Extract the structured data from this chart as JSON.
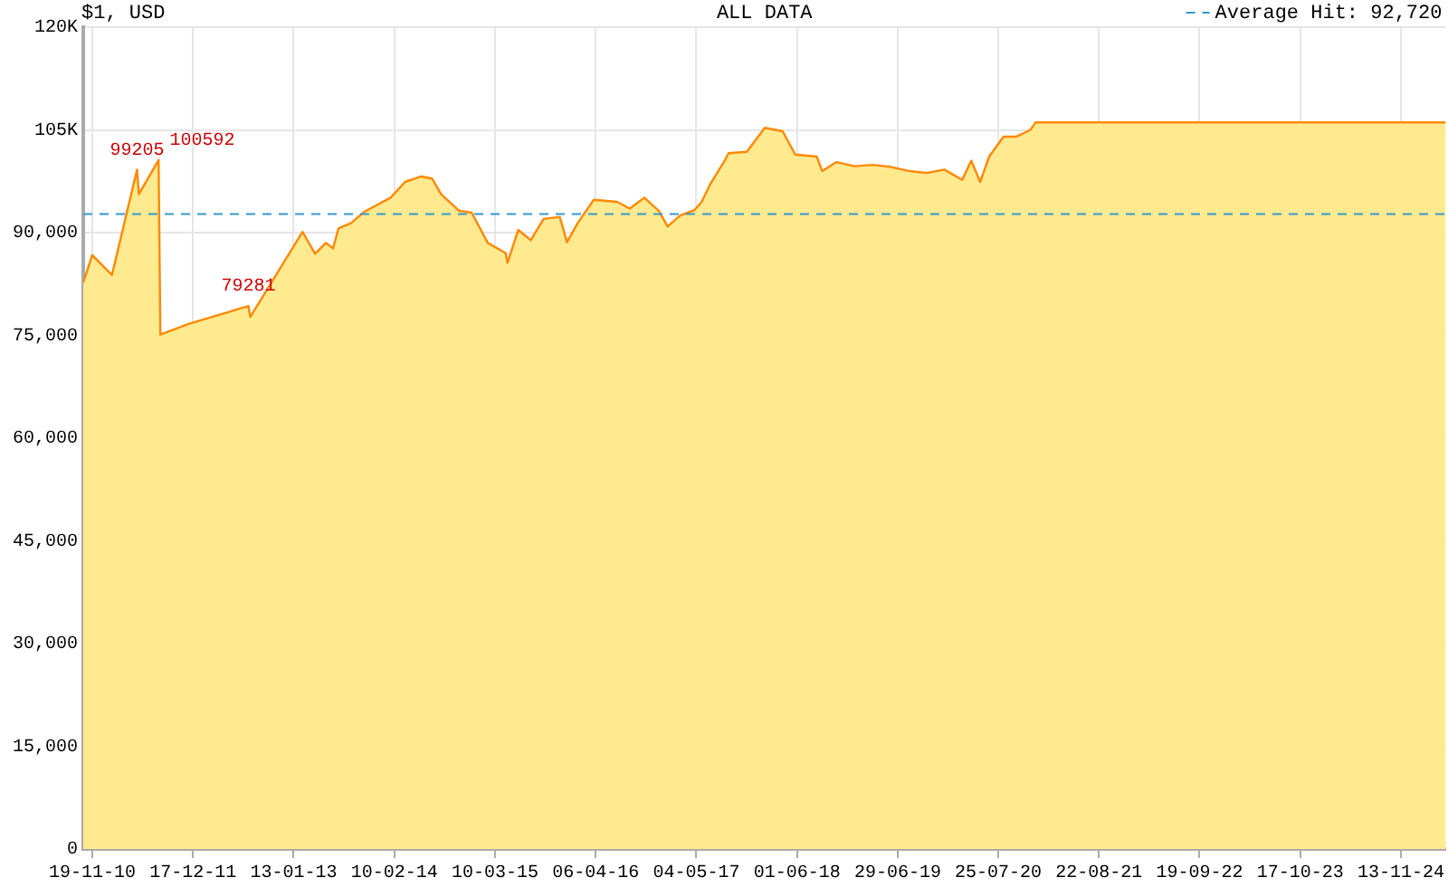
{
  "chart_data": {
    "type": "area",
    "title": "$1, USD",
    "subtitle": "ALL DATA",
    "x": [
      "2010-10-15",
      "2010-11-19",
      "2011-02-04",
      "2011-05-13",
      "2011-05-20",
      "2011-08-05",
      "2011-08-12",
      "2011-12-03",
      "2012-07-21",
      "2012-07-28",
      "2013-02-17",
      "2013-04-07",
      "2013-05-19",
      "2013-06-16",
      "2013-07-07",
      "2013-08-26",
      "2013-10-14",
      "2014-01-27",
      "2014-03-24",
      "2014-05-26",
      "2014-07-07",
      "2014-08-12",
      "2014-10-21",
      "2014-12-09",
      "2015-02-10",
      "2015-04-21",
      "2015-04-28",
      "2015-06-09",
      "2015-07-28",
      "2015-09-16",
      "2015-11-18",
      "2015-12-16",
      "2016-01-27",
      "2016-03-30",
      "2016-06-29",
      "2016-08-17",
      "2016-10-13",
      "2016-12-08",
      "2017-01-12",
      "2017-03-02",
      "2017-04-27",
      "2017-05-25",
      "2017-06-29",
      "2017-08-24",
      "2017-09-07",
      "2017-11-17",
      "2018-01-26",
      "2018-04-06",
      "2018-05-25",
      "2018-08-17",
      "2018-09-07",
      "2018-11-02",
      "2019-01-12",
      "2019-03-23",
      "2019-06-01",
      "2019-08-10",
      "2019-10-19",
      "2019-12-28",
      "2020-03-07",
      "2020-04-11",
      "2020-05-16",
      "2020-06-20",
      "2020-08-15",
      "2020-10-03",
      "2020-11-28",
      "2020-12-19",
      "2025-05-07"
    ],
    "series": [
      {
        "color": "#ff8800",
        "values": [
          82700,
          86700,
          83800,
          99205,
          95600,
          100592,
          75100,
          76700,
          79281,
          77700,
          90100,
          86900,
          88500,
          87700,
          90600,
          91400,
          93000,
          95100,
          97400,
          98200,
          97900,
          95600,
          93200,
          92900,
          88500,
          87000,
          85600,
          90400,
          88900,
          92000,
          92300,
          88600,
          91400,
          94800,
          94500,
          93500,
          95100,
          93200,
          90900,
          92500,
          93300,
          94500,
          97200,
          100600,
          101600,
          101800,
          105300,
          104800,
          101400,
          101100,
          99000,
          100300,
          99700,
          99900,
          99600,
          99000,
          98700,
          99200,
          97700,
          100500,
          97400,
          101100,
          104000,
          104000,
          105000,
          106100,
          106100
        ]
      }
    ],
    "xlim": [
      "2010-10-15",
      "2025-05-07"
    ],
    "xticks": [
      {
        "value": "2010-11-19",
        "label": "19-11-10"
      },
      {
        "value": "2011-12-17",
        "label": "17-12-11"
      },
      {
        "value": "2013-01-13",
        "label": "13-01-13"
      },
      {
        "value": "2014-02-10",
        "label": "10-02-14"
      },
      {
        "value": "2015-03-10",
        "label": "10-03-15"
      },
      {
        "value": "2016-04-06",
        "label": "06-04-16"
      },
      {
        "value": "2017-05-04",
        "label": "04-05-17"
      },
      {
        "value": "2018-06-01",
        "label": "01-06-18"
      },
      {
        "value": "2019-06-29",
        "label": "29-06-19"
      },
      {
        "value": "2020-07-25",
        "label": "25-07-20"
      },
      {
        "value": "2021-08-22",
        "label": "22-08-21"
      },
      {
        "value": "2022-09-19",
        "label": "19-09-22"
      },
      {
        "value": "2023-10-17",
        "label": "17-10-23"
      },
      {
        "value": "2024-11-13",
        "label": "13-11-24"
      }
    ],
    "ylim": [
      0,
      120000
    ],
    "yticks": [
      0,
      {
        "value": 15000,
        "label": "15,000"
      },
      {
        "value": 30000,
        "label": "30,000"
      },
      {
        "value": 45000,
        "label": "45,000"
      },
      {
        "value": 60000,
        "label": "60,000"
      },
      {
        "value": 75000,
        "label": "75,000"
      },
      {
        "value": 90000,
        "label": "90,000"
      },
      {
        "value": 105000,
        "label": "105K"
      },
      {
        "value": 120000,
        "label": "120K"
      }
    ],
    "ref_lines": [
      {
        "axis": "y",
        "value": 92720,
        "label": "Average Hit: 92,720",
        "color": "#3399cc",
        "line_style": "dashed"
      }
    ],
    "annotations": [
      {
        "text": "99205",
        "x": "2011-05-13",
        "y": 99205
      },
      {
        "text": "100592",
        "x": "2011-08-05",
        "y": 100592
      },
      {
        "text": "79281",
        "x": "2012-07-21",
        "y": 79281
      }
    ],
    "grid": true,
    "marker": "none",
    "line_style": "solid"
  }
}
